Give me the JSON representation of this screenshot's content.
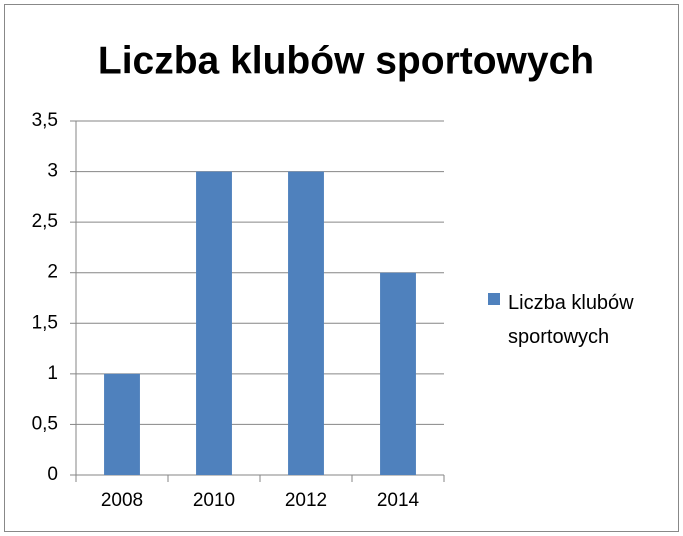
{
  "chart_data": {
    "type": "bar",
    "title": "Liczba klubów sportowych",
    "categories": [
      "2008",
      "2010",
      "2012",
      "2014"
    ],
    "series": [
      {
        "name": "Liczba klubów sportowych",
        "color": "#4f81bd",
        "values": [
          1,
          3,
          3,
          2
        ]
      }
    ],
    "ylim": [
      0,
      3.5
    ],
    "yticks": [
      0,
      {
        "value": 0.5,
        "label": "0,5"
      },
      1,
      {
        "value": 1.5,
        "label": "1,5"
      },
      2,
      {
        "value": 2.5,
        "label": "2,5"
      },
      3,
      {
        "value": 3.5,
        "label": "3,5"
      }
    ],
    "grid": true,
    "legend": "right"
  }
}
